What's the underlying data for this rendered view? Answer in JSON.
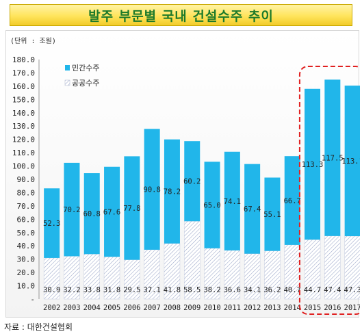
{
  "header": {
    "title": "발주 부문별 국내 건설수주 추이"
  },
  "footer": {
    "source": "자료 : 대한건설협회"
  },
  "chart_data": {
    "type": "bar",
    "stacked": true,
    "unit_label": "(단위 : 조원)",
    "categories": [
      "2002",
      "2003",
      "2004",
      "2005",
      "2006",
      "2007",
      "2008",
      "2009",
      "2010",
      "2011",
      "2012",
      "2013",
      "2014",
      "2015",
      "2016",
      "2017"
    ],
    "series": [
      {
        "name": "공공수주",
        "values": [
          30.9,
          32.2,
          33.8,
          31.8,
          29.5,
          37.1,
          41.8,
          58.5,
          38.2,
          36.6,
          34.1,
          36.2,
          40.7,
          44.7,
          47.4,
          47.3
        ],
        "color": "#ffffff",
        "pattern": "hatched"
      },
      {
        "name": "민간수주",
        "values": [
          52.3,
          70.2,
          60.8,
          67.6,
          77.8,
          90.8,
          78.2,
          60.2,
          65.0,
          74.1,
          67.4,
          55.1,
          66.7,
          113.3,
          117.5,
          113.1
        ],
        "color": "#21b6ea"
      }
    ],
    "value_labels": {
      "public": [
        "30.9",
        "32.2",
        "33.8",
        "31.8",
        "29.5",
        "37.1",
        "41.8",
        "58.5",
        "38.2",
        "36.6",
        "34.1",
        "36.2",
        "40.7",
        "44.7",
        "47.4",
        "47.3"
      ],
      "private": [
        "52.3",
        "70.2",
        "60.8",
        "67.6",
        "77.8",
        "90.8",
        "78.2",
        "60.2",
        "65.0",
        "74.1",
        "67.4",
        "55.1",
        "66.7",
        "113.3",
        "117.5",
        "113.1"
      ]
    },
    "y_ticks": [
      "-",
      "10.0",
      "20.0",
      "30.0",
      "40.0",
      "50.0",
      "60.0",
      "70.0",
      "80.0",
      "90.0",
      "100.0",
      "110.0",
      "120.0",
      "130.0",
      "140.0",
      "150.0",
      "160.0",
      "170.0",
      "180.0"
    ],
    "ylim": [
      0,
      180
    ],
    "grid": false,
    "legend": "top-left",
    "highlight": {
      "categories": [
        "2015",
        "2016",
        "2017"
      ],
      "style": "dashed",
      "color": "#e02020"
    }
  }
}
